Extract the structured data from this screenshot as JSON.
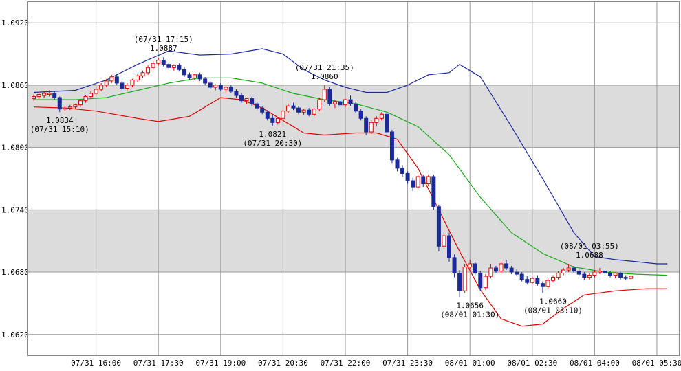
{
  "chart_data": {
    "type": "candlestick",
    "ylim": [
      1.06,
      1.094
    ],
    "y_ticks": [
      "1.0920",
      "1.0860",
      "1.0800",
      "1.0740",
      "1.0680",
      "1.0620"
    ],
    "shaded_bands": [
      [
        1.08,
        1.086
      ],
      [
        1.068,
        1.074
      ]
    ],
    "x_ticks": [
      {
        "i": 12,
        "label": "07/31 16:00"
      },
      {
        "i": 24,
        "label": "07/31 17:30"
      },
      {
        "i": 36,
        "label": "07/31 19:00"
      },
      {
        "i": 48,
        "label": "07/31 20:30"
      },
      {
        "i": 60,
        "label": "07/31 22:00"
      },
      {
        "i": 72,
        "label": "07/31 23:30"
      },
      {
        "i": 84,
        "label": "08/01 01:00"
      },
      {
        "i": 96,
        "label": "08/01 02:30"
      },
      {
        "i": 108,
        "label": "08/01 04:00"
      },
      {
        "i": 120,
        "label": "08/01 05:30"
      }
    ],
    "colors": {
      "up": "#e00000",
      "down": "#1a2a9a",
      "upper_band": "#1a2a9a",
      "lower_band": "#e00000",
      "mid_band": "#1aaa1a",
      "grid": "#999999",
      "shade": "#dcdcdc"
    },
    "candles": [
      [
        1.0847,
        1.0851,
        1.0845,
        1.0849
      ],
      [
        1.0849,
        1.0853,
        1.0847,
        1.0851
      ],
      [
        1.085,
        1.0854,
        1.0848,
        1.0852
      ],
      [
        1.0851,
        1.0855,
        1.0849,
        1.0852
      ],
      [
        1.0852,
        1.0854,
        1.0846,
        1.0848
      ],
      [
        1.0848,
        1.0849,
        1.0834,
        1.0837
      ],
      [
        1.0837,
        1.084,
        1.0835,
        1.0838
      ],
      [
        1.0838,
        1.0841,
        1.0836,
        1.0839
      ],
      [
        1.0839,
        1.0842,
        1.0837,
        1.0841
      ],
      [
        1.0841,
        1.0846,
        1.0839,
        1.0845
      ],
      [
        1.0845,
        1.085,
        1.0843,
        1.0849
      ],
      [
        1.0849,
        1.0854,
        1.0847,
        1.0852
      ],
      [
        1.0852,
        1.0858,
        1.085,
        1.0856
      ],
      [
        1.0856,
        1.0862,
        1.0854,
        1.086
      ],
      [
        1.086,
        1.0866,
        1.0858,
        1.0864
      ],
      [
        1.0864,
        1.087,
        1.0862,
        1.0868
      ],
      [
        1.0868,
        1.0871,
        1.086,
        1.0862
      ],
      [
        1.0862,
        1.0864,
        1.0855,
        1.0857
      ],
      [
        1.0857,
        1.0862,
        1.0855,
        1.086
      ],
      [
        1.086,
        1.0866,
        1.0858,
        1.0865
      ],
      [
        1.0865,
        1.0871,
        1.0863,
        1.0869
      ],
      [
        1.0869,
        1.0874,
        1.0867,
        1.0872
      ],
      [
        1.0872,
        1.0879,
        1.087,
        1.0877
      ],
      [
        1.0877,
        1.0883,
        1.0875,
        1.0881
      ],
      [
        1.0881,
        1.0886,
        1.0879,
        1.0884
      ],
      [
        1.0884,
        1.0887,
        1.0878,
        1.088
      ],
      [
        1.088,
        1.0882,
        1.0875,
        1.0877
      ],
      [
        1.0877,
        1.088,
        1.0874,
        1.0879
      ],
      [
        1.0879,
        1.0881,
        1.0873,
        1.0875
      ],
      [
        1.0875,
        1.0877,
        1.0868,
        1.087
      ],
      [
        1.087,
        1.0872,
        1.0865,
        1.0867
      ],
      [
        1.0867,
        1.0871,
        1.0865,
        1.087
      ],
      [
        1.087,
        1.0872,
        1.0864,
        1.0866
      ],
      [
        1.0866,
        1.0868,
        1.086,
        1.0862
      ],
      [
        1.0862,
        1.0864,
        1.0856,
        1.0858
      ],
      [
        1.0858,
        1.0861,
        1.0855,
        1.086
      ],
      [
        1.086,
        1.0862,
        1.0854,
        1.0856
      ],
      [
        1.0856,
        1.0859,
        1.0853,
        1.0858
      ],
      [
        1.0858,
        1.086,
        1.0852,
        1.0854
      ],
      [
        1.0854,
        1.0856,
        1.0848,
        1.085
      ],
      [
        1.085,
        1.0852,
        1.0843,
        1.0845
      ],
      [
        1.0845,
        1.0848,
        1.0842,
        1.0847
      ],
      [
        1.0847,
        1.0849,
        1.084,
        1.0842
      ],
      [
        1.0842,
        1.0844,
        1.0836,
        1.0838
      ],
      [
        1.0838,
        1.084,
        1.0832,
        1.0834
      ],
      [
        1.0834,
        1.0836,
        1.0826,
        1.0828
      ],
      [
        1.0828,
        1.0831,
        1.0821,
        1.0824
      ],
      [
        1.0824,
        1.0829,
        1.0822,
        1.0828
      ],
      [
        1.0828,
        1.0836,
        1.0826,
        1.0835
      ],
      [
        1.0835,
        1.0842,
        1.0833,
        1.084
      ],
      [
        1.084,
        1.0843,
        1.0836,
        1.0838
      ],
      [
        1.0838,
        1.084,
        1.0832,
        1.0834
      ],
      [
        1.0834,
        1.0837,
        1.0831,
        1.0836
      ],
      [
        1.0836,
        1.0838,
        1.083,
        1.0832
      ],
      [
        1.0832,
        1.0838,
        1.083,
        1.0837
      ],
      [
        1.0837,
        1.0848,
        1.0835,
        1.0846
      ],
      [
        1.0846,
        1.086,
        1.0844,
        1.0856
      ],
      [
        1.0856,
        1.0858,
        1.084,
        1.0842
      ],
      [
        1.0842,
        1.0846,
        1.0838,
        1.0844
      ],
      [
        1.0844,
        1.0846,
        1.0839,
        1.0841
      ],
      [
        1.0841,
        1.0847,
        1.0839,
        1.0846
      ],
      [
        1.0846,
        1.085,
        1.084,
        1.0842
      ],
      [
        1.0842,
        1.0844,
        1.0833,
        1.0835
      ],
      [
        1.0835,
        1.0837,
        1.0826,
        1.0828
      ],
      [
        1.0828,
        1.083,
        1.0812,
        1.0815
      ],
      [
        1.0815,
        1.0826,
        1.0813,
        1.0824
      ],
      [
        1.0824,
        1.083,
        1.082,
        1.0828
      ],
      [
        1.0828,
        1.0834,
        1.0826,
        1.0832
      ],
      [
        1.0832,
        1.0834,
        1.0812,
        1.0815
      ],
      [
        1.0815,
        1.0817,
        1.0785,
        1.0788
      ],
      [
        1.0788,
        1.079,
        1.0777,
        1.078
      ],
      [
        1.078,
        1.0783,
        1.0772,
        1.0775
      ],
      [
        1.0775,
        1.0777,
        1.0765,
        1.0768
      ],
      [
        1.0768,
        1.0771,
        1.0758,
        1.0762
      ],
      [
        1.0762,
        1.0774,
        1.076,
        1.0772
      ],
      [
        1.0772,
        1.0774,
        1.0762,
        1.0765
      ],
      [
        1.0765,
        1.0774,
        1.0763,
        1.0772
      ],
      [
        1.0772,
        1.0774,
        1.074,
        1.0743
      ],
      [
        1.0743,
        1.0745,
        1.07,
        1.0705
      ],
      [
        1.0705,
        1.0718,
        1.0702,
        1.0715
      ],
      [
        1.0715,
        1.0718,
        1.069,
        1.0694
      ],
      [
        1.0694,
        1.0697,
        1.0675,
        1.0679
      ],
      [
        1.0679,
        1.0682,
        1.0656,
        1.0662
      ],
      [
        1.0662,
        1.0688,
        1.066,
        1.0685
      ],
      [
        1.0685,
        1.0692,
        1.0683,
        1.0688
      ],
      [
        1.0688,
        1.069,
        1.0677,
        1.0679
      ],
      [
        1.0679,
        1.0681,
        1.0662,
        1.0665
      ],
      [
        1.0665,
        1.0678,
        1.0663,
        1.0676
      ],
      [
        1.0676,
        1.0688,
        1.0674,
        1.0684
      ],
      [
        1.0684,
        1.0686,
        1.0679,
        1.0681
      ],
      [
        1.0681,
        1.069,
        1.0679,
        1.0688
      ],
      [
        1.0688,
        1.0692,
        1.0682,
        1.0684
      ],
      [
        1.0684,
        1.0686,
        1.0678,
        1.068
      ],
      [
        1.068,
        1.0683,
        1.0676,
        1.0678
      ],
      [
        1.0678,
        1.068,
        1.0671,
        1.0673
      ],
      [
        1.0673,
        1.0676,
        1.0668,
        1.067
      ],
      [
        1.067,
        1.0676,
        1.0668,
        1.0674
      ],
      [
        1.0674,
        1.0677,
        1.0667,
        1.0669
      ],
      [
        1.0669,
        1.0671,
        1.066,
        1.0666
      ],
      [
        1.0666,
        1.0674,
        1.0664,
        1.0672
      ],
      [
        1.0672,
        1.0677,
        1.067,
        1.0675
      ],
      [
        1.0675,
        1.0681,
        1.0673,
        1.0679
      ],
      [
        1.0679,
        1.0684,
        1.0677,
        1.0682
      ],
      [
        1.0682,
        1.0688,
        1.068,
        1.0684
      ],
      [
        1.0684,
        1.0686,
        1.0679,
        1.0681
      ],
      [
        1.0681,
        1.0683,
        1.0676,
        1.0678
      ],
      [
        1.0678,
        1.068,
        1.0672,
        1.0675
      ],
      [
        1.0675,
        1.0679,
        1.0673,
        1.0677
      ],
      [
        1.0677,
        1.0682,
        1.0675,
        1.068
      ],
      [
        1.068,
        1.0684,
        1.0678,
        1.0681
      ],
      [
        1.0681,
        1.0683,
        1.0677,
        1.0679
      ],
      [
        1.0679,
        1.0681,
        1.0675,
        1.0677
      ],
      [
        1.0677,
        1.068,
        1.0674,
        1.0679
      ],
      [
        1.0679,
        1.068,
        1.0673,
        1.0675
      ],
      [
        1.0675,
        1.0677,
        1.0672,
        1.0674
      ],
      [
        1.0674,
        1.0677,
        1.0673,
        1.0676
      ]
    ],
    "upper_band": [
      [
        0,
        1.0853
      ],
      [
        8,
        1.0855
      ],
      [
        14,
        1.0865
      ],
      [
        20,
        1.088
      ],
      [
        26,
        1.0893
      ],
      [
        32,
        1.0889
      ],
      [
        38,
        1.089
      ],
      [
        44,
        1.0895
      ],
      [
        48,
        1.089
      ],
      [
        52,
        1.0875
      ],
      [
        56,
        1.0865
      ],
      [
        60,
        1.0858
      ],
      [
        64,
        1.0853
      ],
      [
        68,
        1.0853
      ],
      [
        72,
        1.086
      ],
      [
        76,
        1.087
      ],
      [
        80,
        1.0872
      ],
      [
        82,
        1.088
      ],
      [
        86,
        1.0868
      ],
      [
        92,
        1.082
      ],
      [
        98,
        1.077
      ],
      [
        104,
        1.0718
      ],
      [
        108,
        1.0695
      ],
      [
        112,
        1.0692
      ],
      [
        116,
        1.069
      ],
      [
        120,
        1.0688
      ],
      [
        122,
        1.0688
      ]
    ],
    "mid_band": [
      [
        0,
        1.0846
      ],
      [
        8,
        1.0846
      ],
      [
        14,
        1.0848
      ],
      [
        20,
        1.0855
      ],
      [
        26,
        1.0862
      ],
      [
        32,
        1.0867
      ],
      [
        38,
        1.0867
      ],
      [
        44,
        1.0862
      ],
      [
        50,
        1.0852
      ],
      [
        56,
        1.0846
      ],
      [
        62,
        1.0842
      ],
      [
        68,
        1.0834
      ],
      [
        74,
        1.082
      ],
      [
        80,
        1.0793
      ],
      [
        86,
        1.0752
      ],
      [
        92,
        1.0718
      ],
      [
        98,
        1.0698
      ],
      [
        104,
        1.0685
      ],
      [
        110,
        1.068
      ],
      [
        116,
        1.0678
      ],
      [
        122,
        1.0677
      ]
    ],
    "lower_band": [
      [
        0,
        1.0839
      ],
      [
        6,
        1.0838
      ],
      [
        12,
        1.0835
      ],
      [
        20,
        1.0828
      ],
      [
        24,
        1.0825
      ],
      [
        30,
        1.083
      ],
      [
        36,
        1.0848
      ],
      [
        40,
        1.0846
      ],
      [
        44,
        1.0838
      ],
      [
        48,
        1.0826
      ],
      [
        52,
        1.0814
      ],
      [
        56,
        1.0812
      ],
      [
        62,
        1.0814
      ],
      [
        66,
        1.0814
      ],
      [
        70,
        1.0808
      ],
      [
        74,
        1.078
      ],
      [
        78,
        1.074
      ],
      [
        82,
        1.07
      ],
      [
        86,
        1.0663
      ],
      [
        90,
        1.0635
      ],
      [
        94,
        1.0628
      ],
      [
        98,
        1.063
      ],
      [
        102,
        1.0645
      ],
      [
        106,
        1.0658
      ],
      [
        112,
        1.0662
      ],
      [
        118,
        1.0664
      ],
      [
        122,
        1.0664
      ]
    ],
    "annotations": [
      {
        "i": 5,
        "price": 1.0834,
        "pos": "below",
        "value": "1.0834",
        "time": "(07/31 15:10)"
      },
      {
        "i": 25,
        "price": 1.0887,
        "pos": "above",
        "value": "1.0887",
        "time": "(07/31 17:15)"
      },
      {
        "i": 46,
        "price": 1.0821,
        "pos": "below",
        "value": "1.0821",
        "time": "(07/31 20:30)"
      },
      {
        "i": 56,
        "price": 1.086,
        "pos": "above",
        "value": "1.0860",
        "time": "(07/31 21:35)"
      },
      {
        "i": 84,
        "price": 1.0656,
        "pos": "below",
        "value": "1.0656",
        "time": "(08/01 01:30)"
      },
      {
        "i": 100,
        "price": 1.066,
        "pos": "below",
        "value": "1.0660",
        "time": "(08/01 03:10)"
      },
      {
        "i": 107,
        "price": 1.0688,
        "pos": "above",
        "value": "1.0688",
        "time": "(08/01 03:55)"
      }
    ]
  }
}
